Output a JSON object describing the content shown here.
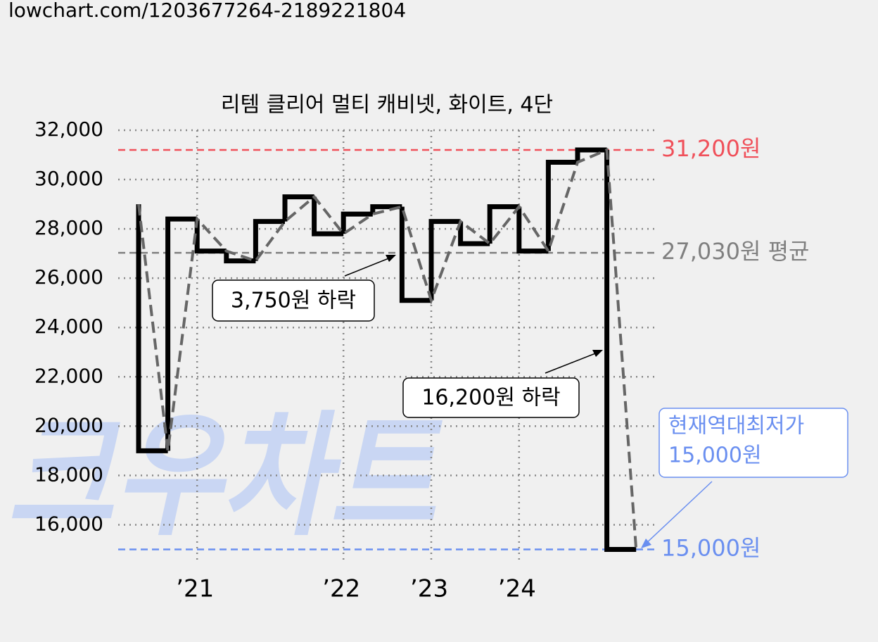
{
  "source_url": "lowchart.com/1203677264-2189221804",
  "chart_data": {
    "type": "step",
    "title": "리템 클리어 멀티 캐비넷, 화이트, 4단",
    "watermark": "크우차트",
    "categories": [
      null,
      null,
      "’21",
      null,
      null,
      null,
      null,
      "’22",
      null,
      null,
      "’23",
      null,
      null,
      "’24",
      null,
      null,
      null,
      null
    ],
    "values": [
      29000,
      19000,
      28400,
      27100,
      26700,
      28300,
      29300,
      27800,
      28600,
      28900,
      25100,
      28300,
      27400,
      28900,
      27100,
      30700,
      31200,
      15000
    ],
    "color": "#000000",
    "trend_color": "#666666",
    "ylim": [
      14500,
      32000
    ],
    "yticks": [
      {
        "value": 16000,
        "label": "16,000"
      },
      {
        "value": 18000,
        "label": "18,000"
      },
      {
        "value": 20000,
        "label": "20,000"
      },
      {
        "value": 22000,
        "label": "22,000"
      },
      {
        "value": 24000,
        "label": "24,000"
      },
      {
        "value": 26000,
        "label": "26,000"
      },
      {
        "value": 28000,
        "label": "28,000"
      },
      {
        "value": 30000,
        "label": "30,000"
      },
      {
        "value": 32000,
        "label": "32,000"
      }
    ],
    "grid": true,
    "reference_lines": [
      {
        "value": 31200,
        "label": "31,200원",
        "color": "#f0505a"
      },
      {
        "value": 27030,
        "label": "27,030원 평균",
        "color": "#808080"
      },
      {
        "value": 15000,
        "label": "15,000원",
        "color": "#6a8ff0"
      }
    ],
    "annotations": [
      "3,750원 하락",
      "16,200원 하락",
      "현재역대최저가",
      "15,000원"
    ]
  }
}
